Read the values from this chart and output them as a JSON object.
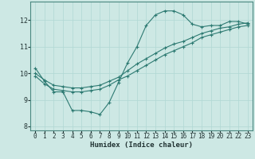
{
  "xlabel": "Humidex (Indice chaleur)",
  "ylabel": "",
  "bg_color": "#cde8e4",
  "grid_color": "#b0d8d4",
  "line_color": "#2d7a72",
  "xlim": [
    -0.5,
    23.5
  ],
  "ylim": [
    7.85,
    12.7
  ],
  "xticks": [
    0,
    1,
    2,
    3,
    4,
    5,
    6,
    7,
    8,
    9,
    10,
    11,
    12,
    13,
    14,
    15,
    16,
    17,
    18,
    19,
    20,
    21,
    22,
    23
  ],
  "yticks": [
    8,
    9,
    10,
    11,
    12
  ],
  "line1_x": [
    0,
    1,
    2,
    3,
    4,
    5,
    6,
    7,
    8,
    9,
    10,
    11,
    12,
    13,
    14,
    15,
    16,
    17,
    18,
    19,
    20,
    21,
    22,
    23
  ],
  "line1_y": [
    10.2,
    9.7,
    9.3,
    9.3,
    8.6,
    8.6,
    8.55,
    8.45,
    8.9,
    9.65,
    10.4,
    11.0,
    11.8,
    12.2,
    12.35,
    12.35,
    12.2,
    11.85,
    11.75,
    11.8,
    11.8,
    11.95,
    11.95,
    11.85
  ],
  "line2_x": [
    0,
    1,
    2,
    3,
    4,
    5,
    6,
    7,
    8,
    9,
    10,
    11,
    12,
    13,
    14,
    15,
    16,
    17,
    18,
    19,
    20,
    21,
    22,
    23
  ],
  "line2_y": [
    10.0,
    9.75,
    9.55,
    9.5,
    9.45,
    9.45,
    9.5,
    9.55,
    9.7,
    9.85,
    10.1,
    10.35,
    10.55,
    10.75,
    10.95,
    11.1,
    11.2,
    11.35,
    11.5,
    11.6,
    11.7,
    11.75,
    11.85,
    11.9
  ],
  "line3_x": [
    0,
    1,
    2,
    3,
    4,
    5,
    6,
    7,
    8,
    9,
    10,
    11,
    12,
    13,
    14,
    15,
    16,
    17,
    18,
    19,
    20,
    21,
    22,
    23
  ],
  "line3_y": [
    9.9,
    9.6,
    9.4,
    9.35,
    9.3,
    9.3,
    9.35,
    9.4,
    9.55,
    9.75,
    9.9,
    10.1,
    10.3,
    10.5,
    10.7,
    10.85,
    11.0,
    11.15,
    11.35,
    11.45,
    11.55,
    11.65,
    11.75,
    11.8
  ],
  "tick_fontsize": 5.5,
  "xlabel_fontsize": 6.5,
  "xlabel_fontweight": "bold"
}
